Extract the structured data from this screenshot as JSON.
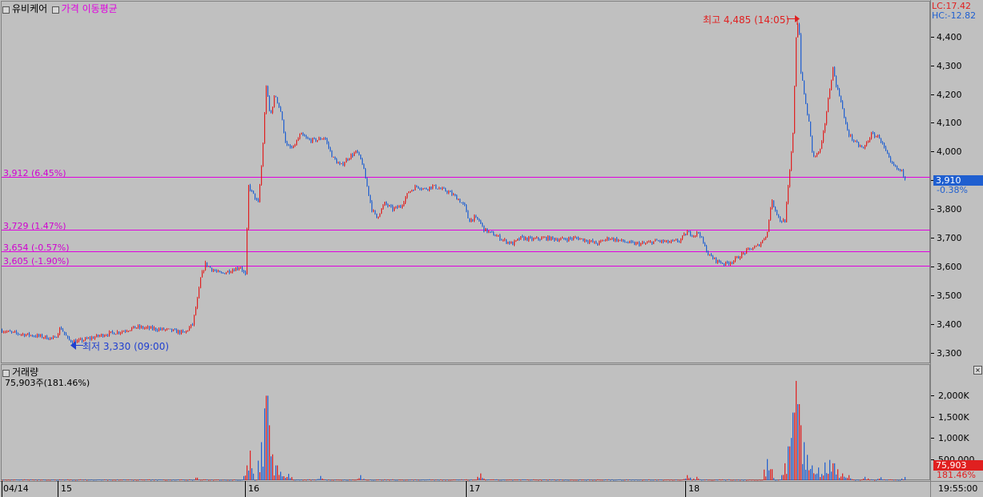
{
  "header": {
    "stock_name": "유비케어",
    "indicator": "가격 이동평균",
    "lc": "LC:17.42",
    "hc": "HC:-12.82"
  },
  "levels": [
    {
      "price": 3912,
      "label": "3,912 (6.45%)"
    },
    {
      "price": 3729,
      "label": "3,729 (1.47%)"
    },
    {
      "price": 3654,
      "label": "3,654 (-0.57%)"
    },
    {
      "price": 3605,
      "label": "3,605 (-1.90%)"
    }
  ],
  "annotations": {
    "high": "최고 4,485 (14:05)",
    "low": "최저 3,330 (09:00)"
  },
  "current": {
    "price": "3,910",
    "change": "-0.38%"
  },
  "volume_panel": {
    "title": "거래량",
    "summary": "75,903주(181.46%)",
    "current": "75,903",
    "ratio": "181.46%"
  },
  "time_axis": {
    "start_label": "04/14",
    "day_labels": [
      "15",
      "16",
      "17",
      "18"
    ],
    "end_time": "19:55:00"
  },
  "colors": {
    "background": "#c0c0c0",
    "up": "#e02020",
    "down": "#1f5fd0",
    "level_line": "#e000e0",
    "grid": "#ffffff"
  },
  "chart_data": {
    "type": "candlestick-with-volume",
    "price_axis": {
      "ylim": [
        3270,
        4510
      ],
      "ticks": [
        3300,
        3400,
        3500,
        3600,
        3700,
        3800,
        3900,
        4000,
        4100,
        4200,
        4300,
        4400
      ],
      "tick_labels": [
        "3,300",
        "3,400",
        "3,500",
        "3,600",
        "3,700",
        "3,800",
        "3,900",
        "4,000",
        "4,100",
        "4,200",
        "4,300",
        "4,400"
      ]
    },
    "volume_axis": {
      "ylim": [
        0,
        2500000
      ],
      "ticks": [
        500000,
        1000000,
        1500000,
        2000000
      ],
      "tick_labels": [
        "500,000",
        "1,000K",
        "1,500K",
        "2,000K"
      ]
    },
    "price_path": [
      [
        0,
        3380
      ],
      [
        15,
        3370
      ],
      [
        30,
        3365
      ],
      [
        50,
        3358
      ],
      [
        68,
        3350
      ],
      [
        75,
        3390
      ],
      [
        85,
        3345
      ],
      [
        95,
        3340
      ],
      [
        110,
        3350
      ],
      [
        130,
        3365
      ],
      [
        150,
        3375
      ],
      [
        170,
        3390
      ],
      [
        190,
        3385
      ],
      [
        210,
        3380
      ],
      [
        230,
        3370
      ],
      [
        240,
        3400
      ],
      [
        247,
        3500
      ],
      [
        250,
        3560
      ],
      [
        256,
        3610
      ],
      [
        265,
        3590
      ],
      [
        275,
        3575
      ],
      [
        290,
        3590
      ],
      [
        300,
        3600
      ],
      [
        306,
        3570
      ],
      [
        310,
        3880
      ],
      [
        316,
        3850
      ],
      [
        322,
        3820
      ],
      [
        327,
        3980
      ],
      [
        332,
        4230
      ],
      [
        337,
        4120
      ],
      [
        343,
        4200
      ],
      [
        350,
        4140
      ],
      [
        357,
        4020
      ],
      [
        365,
        4010
      ],
      [
        375,
        4060
      ],
      [
        385,
        4040
      ],
      [
        395,
        4040
      ],
      [
        405,
        4050
      ],
      [
        415,
        3980
      ],
      [
        425,
        3950
      ],
      [
        435,
        3980
      ],
      [
        445,
        4000
      ],
      [
        452,
        3960
      ],
      [
        458,
        3880
      ],
      [
        464,
        3800
      ],
      [
        470,
        3770
      ],
      [
        480,
        3820
      ],
      [
        490,
        3800
      ],
      [
        500,
        3810
      ],
      [
        510,
        3860
      ],
      [
        520,
        3880
      ],
      [
        530,
        3870
      ],
      [
        540,
        3880
      ],
      [
        550,
        3870
      ],
      [
        560,
        3860
      ],
      [
        570,
        3840
      ],
      [
        580,
        3810
      ],
      [
        585,
        3760
      ],
      [
        592,
        3770
      ],
      [
        598,
        3760
      ],
      [
        604,
        3730
      ],
      [
        610,
        3720
      ],
      [
        618,
        3710
      ],
      [
        630,
        3690
      ],
      [
        640,
        3680
      ],
      [
        650,
        3700
      ],
      [
        665,
        3695
      ],
      [
        680,
        3700
      ],
      [
        700,
        3695
      ],
      [
        720,
        3700
      ],
      [
        735,
        3690
      ],
      [
        745,
        3680
      ],
      [
        760,
        3700
      ],
      [
        775,
        3690
      ],
      [
        790,
        3680
      ],
      [
        805,
        3680
      ],
      [
        820,
        3690
      ],
      [
        835,
        3685
      ],
      [
        848,
        3690
      ],
      [
        858,
        3720
      ],
      [
        866,
        3710
      ],
      [
        873,
        3720
      ],
      [
        878,
        3680
      ],
      [
        885,
        3640
      ],
      [
        895,
        3620
      ],
      [
        905,
        3610
      ],
      [
        915,
        3620
      ],
      [
        925,
        3640
      ],
      [
        935,
        3660
      ],
      [
        945,
        3670
      ],
      [
        952,
        3690
      ],
      [
        958,
        3720
      ],
      [
        963,
        3830
      ],
      [
        968,
        3800
      ],
      [
        974,
        3760
      ],
      [
        980,
        3760
      ],
      [
        986,
        3930
      ],
      [
        990,
        4060
      ],
      [
        994,
        4400
      ],
      [
        997,
        4470
      ],
      [
        1000,
        4280
      ],
      [
        1005,
        4180
      ],
      [
        1010,
        4100
      ],
      [
        1015,
        3980
      ],
      [
        1020,
        3990
      ],
      [
        1025,
        4010
      ],
      [
        1030,
        4100
      ],
      [
        1035,
        4200
      ],
      [
        1040,
        4290
      ],
      [
        1045,
        4220
      ],
      [
        1050,
        4180
      ],
      [
        1055,
        4100
      ],
      [
        1060,
        4060
      ],
      [
        1068,
        4030
      ],
      [
        1078,
        4010
      ],
      [
        1088,
        4060
      ],
      [
        1098,
        4050
      ],
      [
        1106,
        4000
      ],
      [
        1112,
        3960
      ],
      [
        1120,
        3940
      ],
      [
        1126,
        3930
      ],
      [
        1130,
        3910
      ]
    ],
    "volume_spikes": [
      [
        245,
        60000
      ],
      [
        308,
        350000
      ],
      [
        312,
        700000
      ],
      [
        326,
        900000
      ],
      [
        330,
        1700000
      ],
      [
        333,
        2000000
      ],
      [
        336,
        1300000
      ],
      [
        340,
        600000
      ],
      [
        345,
        350000
      ],
      [
        350,
        200000
      ],
      [
        360,
        150000
      ],
      [
        400,
        100000
      ],
      [
        450,
        120000
      ],
      [
        600,
        160000
      ],
      [
        858,
        120000
      ],
      [
        870,
        80000
      ],
      [
        958,
        500000
      ],
      [
        963,
        260000
      ],
      [
        980,
        400000
      ],
      [
        985,
        800000
      ],
      [
        988,
        1000000
      ],
      [
        991,
        1600000
      ],
      [
        994,
        2350000
      ],
      [
        997,
        1800000
      ],
      [
        1000,
        1300000
      ],
      [
        1004,
        900000
      ],
      [
        1008,
        600000
      ],
      [
        1014,
        350000
      ],
      [
        1022,
        300000
      ],
      [
        1030,
        420000
      ],
      [
        1036,
        480000
      ],
      [
        1041,
        400000
      ],
      [
        1046,
        260000
      ],
      [
        1052,
        160000
      ],
      [
        1060,
        120000
      ],
      [
        1080,
        80000
      ],
      [
        1100,
        70000
      ],
      [
        1130,
        76000
      ]
    ],
    "volume_base": 15000
  }
}
